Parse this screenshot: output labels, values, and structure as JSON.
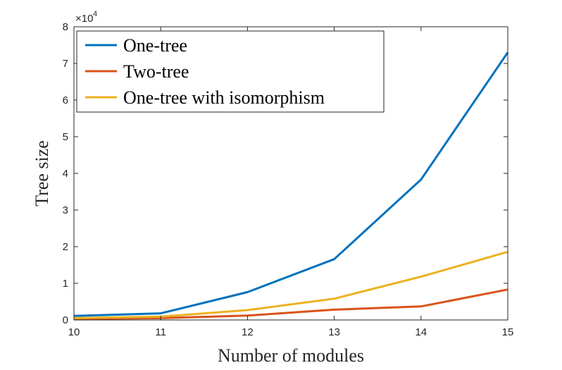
{
  "chart_data": {
    "type": "line",
    "title": "",
    "xlabel": "Number of modules",
    "ylabel": "Tree size",
    "x": [
      10,
      11,
      12,
      13,
      14,
      15
    ],
    "xlim": [
      10,
      15
    ],
    "ylim": [
      0,
      80000
    ],
    "x_ticks": [
      "10",
      "11",
      "12",
      "13",
      "14",
      "15"
    ],
    "y_ticks": [
      "0",
      "1",
      "2",
      "3",
      "4",
      "5",
      "6",
      "7",
      "8"
    ],
    "y_exponent": {
      "base": "×10",
      "power": "4"
    },
    "grid": false,
    "legend_position": "top-left",
    "series": [
      {
        "name": "One-tree",
        "color": "#0072BD",
        "values": [
          1100,
          1800,
          7600,
          16600,
          38300,
          73000
        ]
      },
      {
        "name": "Two-tree",
        "color": "#D95319",
        "values": [
          300,
          500,
          1200,
          2800,
          3700,
          8300
        ]
      },
      {
        "name": "One-tree with isomorphism",
        "color": "#EDB120",
        "values": [
          500,
          900,
          2700,
          5800,
          11800,
          18600
        ]
      }
    ]
  }
}
